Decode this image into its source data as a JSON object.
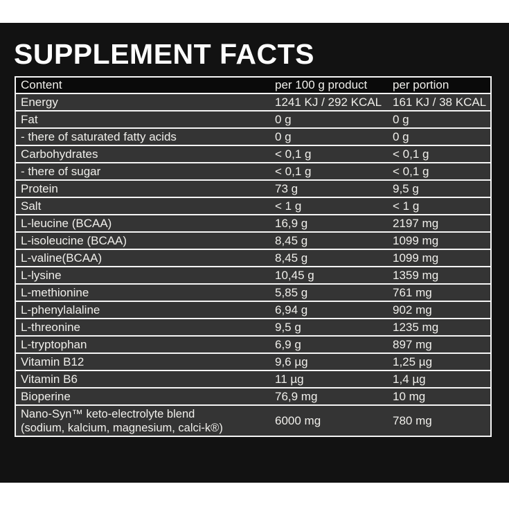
{
  "title": "SUPPLEMENT FACTS",
  "colors": {
    "page_bg": "#ffffff",
    "label_bg": "#121212",
    "header_row_bg": "#0a0a0a",
    "row_bg": "#343434",
    "line": "#f5f5f5",
    "text": "#f0efeb",
    "title_color": "#fdfdfd"
  },
  "table": {
    "headers": [
      "Content",
      "per 100 g product",
      "per portion"
    ],
    "rows": [
      {
        "label": "Energy",
        "per100": "1241 KJ / 292 KCAL",
        "portion": "161 KJ / 38 KCAL"
      },
      {
        "label": "Fat",
        "per100": "0 g",
        "portion": "0 g"
      },
      {
        "label": "- there of saturated fatty acids",
        "per100": "0 g",
        "portion": "0 g"
      },
      {
        "label": "Carbohydrates",
        "per100": "< 0,1 g",
        "portion": "< 0,1 g"
      },
      {
        "label": "- there of sugar",
        "per100": "< 0,1 g",
        "portion": "< 0,1 g"
      },
      {
        "label": "Protein",
        "per100": "73 g",
        "portion": "9,5 g"
      },
      {
        "label": "Salt",
        "per100": "< 1 g",
        "portion": "< 1 g"
      },
      {
        "label": "L-leucine (BCAA)",
        "per100": "16,9 g",
        "portion": "2197 mg"
      },
      {
        "label": "L-isoleucine (BCAA)",
        "per100": "8,45 g",
        "portion": "1099 mg"
      },
      {
        "label": "L-valine(BCAA)",
        "per100": "8,45 g",
        "portion": "1099 mg"
      },
      {
        "label": "L-lysine",
        "per100": "10,45 g",
        "portion": "1359 mg"
      },
      {
        "label": "L-methionine",
        "per100": "5,85 g",
        "portion": "761 mg"
      },
      {
        "label": "L-phenylalaline",
        "per100": "6,94 g",
        "portion": "902 mg"
      },
      {
        "label": "L-threonine",
        "per100": "9,5 g",
        "portion": "1235 mg"
      },
      {
        "label": "L-tryptophan",
        "per100": "6,9 g",
        "portion": "897 mg"
      },
      {
        "label": "Vitamin B12",
        "per100": "9,6 µg",
        "portion": "1,25 µg"
      },
      {
        "label": "Vitamin B6",
        "per100": "11 µg",
        "portion": "1,4 µg"
      },
      {
        "label": "Bioperine",
        "per100": "76,9 mg",
        "portion": "10 mg"
      },
      {
        "label": "Nano-Syn™ keto-electrolyte blend",
        "label2": "(sodium, kalcium, magnesium, calci-k®)",
        "per100": "6000 mg",
        "portion": "780 mg"
      }
    ]
  }
}
